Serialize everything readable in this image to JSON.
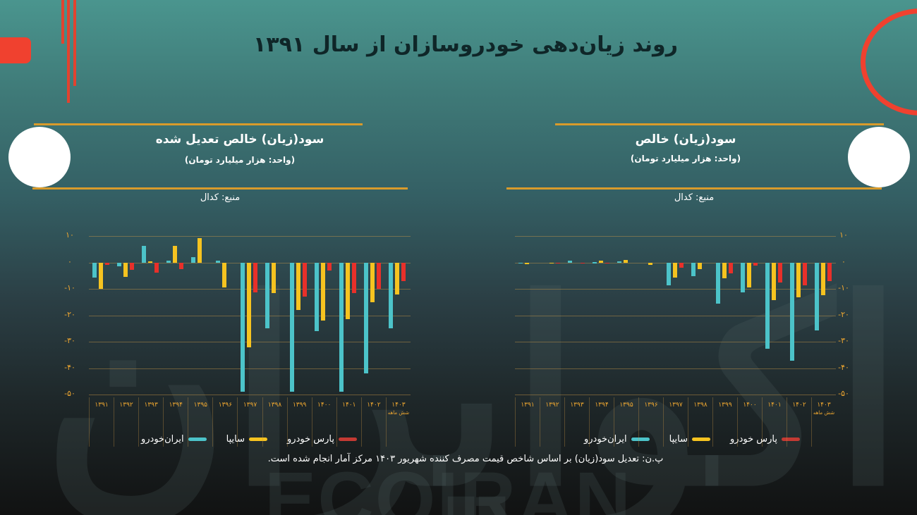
{
  "page": {
    "title": "روند زیان‌دهی خودروسازان از سال ۱۳۹۱",
    "footnote": "پ.ن: تعدیل سود(زیان) بر اساس شاخص قیمت مصرف کننده شهریور ۱۴۰۳ مرکز آمار انجام شده است.",
    "watermark": "ECOIRAN",
    "watermark_fa": "اکوایران"
  },
  "colors": {
    "iran_khodro": "#4cc3c9",
    "saipa": "#f6c320",
    "pars_khodro": "#e8302a",
    "axis_text": "#f0a830",
    "gold_line": "#d99b2b",
    "accent_red": "#f0412f"
  },
  "legend": [
    {
      "label": "پارس خودرو",
      "color": "#e8302a"
    },
    {
      "label": "سایپا",
      "color": "#f6c320"
    },
    {
      "label": "ایران‌خودرو",
      "color": "#4cc3c9"
    }
  ],
  "chart_data": [
    {
      "type": "bar",
      "title": "سود(زیان) خالص تعدیل شده",
      "unit": "(واحد: هزار میلیارد تومان)",
      "source": "منبع: کدال",
      "xlabel": "",
      "ylabel": "",
      "ylim": [
        -50,
        10
      ],
      "yticks": [
        "۱۰",
        "۰",
        "-۱۰",
        "-۲۰",
        "-۳۰",
        "-۴۰",
        "-۵۰"
      ],
      "yvalues": [
        10,
        0,
        -10,
        -20,
        -30,
        -40,
        -50
      ],
      "grid": true,
      "legend_position": "bottom",
      "categories": [
        "۱۳۹۱",
        "۱۳۹۲",
        "۱۳۹۳",
        "۱۳۹۴",
        "۱۳۹۵",
        "۱۳۹۶",
        "۱۳۹۷",
        "۱۳۹۸",
        "۱۳۹۹",
        "۱۴۰۰",
        "۱۴۰۱",
        "۱۴۰۲",
        "۱۴۰۳"
      ],
      "category_notes": {
        "۱۴۰۳": "شش ماهه"
      },
      "series": [
        {
          "name": "ایران‌خودرو",
          "color": "#4cc3c9",
          "values": [
            -5.7,
            -1.5,
            6.4,
            0.8,
            2.0,
            0.6,
            -48.8,
            -24.8,
            -49.0,
            -26.0,
            -49.0,
            -42.0,
            -25.0
          ]
        },
        {
          "name": "سایپا",
          "color": "#f6c320",
          "values": [
            -10.0,
            -5.5,
            0.3,
            6.2,
            9.3,
            -9.5,
            -32.0,
            -11.7,
            -18.0,
            -22.0,
            -21.5,
            -15.0,
            -12.0
          ]
        },
        {
          "name": "پارس خودرو",
          "color": "#e8302a",
          "values": [
            -1.0,
            -2.7,
            -3.8,
            -2.5,
            0.0,
            0.0,
            -11.2,
            0.0,
            -13.0,
            -3.0,
            -11.7,
            -10.0,
            -7.0
          ]
        }
      ]
    },
    {
      "type": "bar",
      "title": "سود(زیان) خالص",
      "unit": "(واحد: هزار میلیارد تومان)",
      "source": "منبع: کدال",
      "xlabel": "",
      "ylabel": "",
      "ylim": [
        -50,
        10
      ],
      "yticks": [
        "۱۰",
        "۰",
        "-۱۰",
        "-۲۰",
        "-۳۰",
        "-۴۰",
        "-۵۰"
      ],
      "yvalues": [
        10,
        0,
        -10,
        -20,
        -30,
        -40,
        -50
      ],
      "grid": true,
      "legend_position": "bottom",
      "categories": [
        "۱۳۹۱",
        "۱۳۹۲",
        "۱۳۹۳",
        "۱۳۹۴",
        "۱۳۹۵",
        "۱۳۹۶",
        "۱۳۹۷",
        "۱۳۹۸",
        "۱۳۹۹",
        "۱۴۰۰",
        "۱۴۰۱",
        "۱۴۰۲",
        "۱۴۰۳"
      ],
      "category_notes": {
        "۱۴۰۳": "شش ماهه"
      },
      "series": [
        {
          "name": "ایران‌خودرو",
          "color": "#4cc3c9",
          "values": [
            -0.2,
            0.0,
            0.7,
            0.1,
            0.3,
            0.0,
            -8.6,
            -5.3,
            -15.7,
            -11.3,
            -32.7,
            -37.3,
            -25.7
          ]
        },
        {
          "name": "سایپا",
          "color": "#f6c320",
          "values": [
            -0.7,
            -0.5,
            0.0,
            0.7,
            1.0,
            -1.0,
            -5.7,
            -2.4,
            -5.9,
            -9.5,
            -14.3,
            -13.2,
            -12.5
          ]
        },
        {
          "name": "پارس خودرو",
          "color": "#e8302a",
          "values": [
            0.0,
            -0.2,
            -0.3,
            -0.2,
            0.0,
            0.0,
            -2.0,
            0.0,
            -4.0,
            -1.3,
            -7.6,
            -8.7,
            -7.0
          ]
        }
      ]
    }
  ]
}
